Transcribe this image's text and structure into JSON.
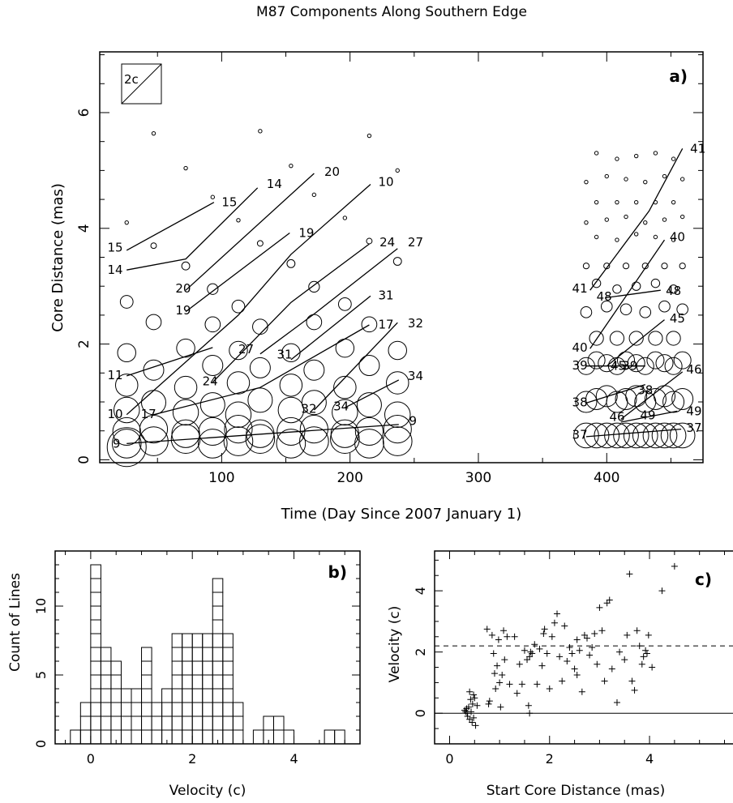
{
  "figure_title": "M87 Components Along Southern Edge",
  "chart_data": [
    {
      "panel": "a)",
      "type": "scatter",
      "xlabel": "Time (Day Since 2007 January 1)",
      "ylabel": "Core Distance (mas)",
      "xlim": [
        5,
        475
      ],
      "ylim": [
        -0.05,
        7.05
      ],
      "xticks": [
        100,
        200,
        300,
        400
      ],
      "yticks": [
        0,
        2,
        4,
        6
      ],
      "inset_label": "2c",
      "component_tracks": [
        {
          "id": "15",
          "points": [
            [
              26,
              3.62
            ],
            [
              94,
              4.45
            ]
          ]
        },
        {
          "id": "14",
          "points": [
            [
              26,
              3.28
            ],
            [
              72,
              3.47
            ],
            [
              128,
              4.7
            ]
          ]
        },
        {
          "id": "20",
          "points": [
            [
              72,
              2.93
            ],
            [
              172,
              4.95
            ]
          ]
        },
        {
          "id": "19",
          "points": [
            [
              72,
              2.56
            ],
            [
              153,
              3.92
            ]
          ]
        },
        {
          "id": "11",
          "points": [
            [
              26,
              1.45
            ],
            [
              93,
              1.94
            ]
          ]
        },
        {
          "id": "10",
          "points": [
            [
              26,
              0.78
            ],
            [
              113,
              2.5
            ],
            [
              154,
              3.55
            ],
            [
              216,
              4.76
            ]
          ]
        },
        {
          "id": "24",
          "points": [
            [
              93,
              1.34
            ],
            [
              154,
              2.72
            ],
            [
              215,
              3.73
            ]
          ]
        },
        {
          "id": "27",
          "points": [
            [
              130,
              1.83
            ],
            [
              172,
              2.52
            ],
            [
              237,
              3.65
            ]
          ]
        },
        {
          "id": "31",
          "points": [
            [
              154,
              1.73
            ],
            [
              216,
              2.83
            ]
          ]
        },
        {
          "id": "17",
          "points": [
            [
              47,
              0.78
            ],
            [
              130,
              1.25
            ],
            [
              215,
              2.33
            ]
          ]
        },
        {
          "id": "32",
          "points": [
            [
              172,
              0.86
            ],
            [
              237,
              2.37
            ]
          ]
        },
        {
          "id": "34",
          "points": [
            [
              196,
              0.9
            ],
            [
              238,
              1.38
            ]
          ]
        },
        {
          "id": "9",
          "points": [
            [
              26,
              0.28
            ],
            [
              238,
              0.61
            ]
          ]
        },
        {
          "id": "41",
          "points": [
            [
              387,
              2.93
            ],
            [
              433,
              4.3
            ],
            [
              459,
              5.38
            ]
          ]
        },
        {
          "id": "40",
          "points": [
            [
              387,
              1.92
            ],
            [
              445,
              3.8
            ]
          ]
        },
        {
          "id": "48",
          "points": [
            [
              399,
              2.8
            ],
            [
              442,
              2.93
            ]
          ]
        },
        {
          "id": "45",
          "points": [
            [
              400,
              1.62
            ],
            [
              445,
              2.42
            ]
          ]
        },
        {
          "id": "39",
          "points": [
            [
              384,
              1.62
            ],
            [
              430,
              1.62
            ]
          ]
        },
        {
          "id": "38",
          "points": [
            [
              384,
              0.98
            ],
            [
              430,
              1.3
            ]
          ]
        },
        {
          "id": "46",
          "points": [
            [
              411,
              0.7
            ],
            [
              459,
              1.52
            ]
          ]
        },
        {
          "id": "49",
          "points": [
            [
              411,
              0.65
            ],
            [
              455,
              0.84
            ]
          ]
        },
        {
          "id": "37",
          "points": [
            [
              384,
              0.4
            ],
            [
              458,
              0.53
            ]
          ]
        }
      ],
      "track_labels": [
        {
          "text": "15",
          "x": 11,
          "y": 3.67
        },
        {
          "text": "14",
          "x": 11,
          "y": 3.28
        },
        {
          "text": "20",
          "x": 64,
          "y": 2.96
        },
        {
          "text": "19",
          "x": 64,
          "y": 2.58
        },
        {
          "text": "11",
          "x": 11,
          "y": 1.46
        },
        {
          "text": "10",
          "x": 11,
          "y": 0.79
        },
        {
          "text": "17",
          "x": 37,
          "y": 0.79
        },
        {
          "text": "9",
          "x": 15,
          "y": 0.28
        },
        {
          "text": "24",
          "x": 85,
          "y": 1.36
        },
        {
          "text": "27",
          "x": 113,
          "y": 1.91
        },
        {
          "text": "31",
          "x": 143,
          "y": 1.82
        },
        {
          "text": "32",
          "x": 162,
          "y": 0.88
        },
        {
          "text": "34",
          "x": 187,
          "y": 0.92
        },
        {
          "text": "15",
          "x": 100,
          "y": 4.45
        },
        {
          "text": "14",
          "x": 135,
          "y": 4.77
        },
        {
          "text": "19",
          "x": 160,
          "y": 3.92
        },
        {
          "text": "20",
          "x": 180,
          "y": 4.98
        },
        {
          "text": "10",
          "x": 222,
          "y": 4.8
        },
        {
          "text": "24",
          "x": 223,
          "y": 3.76
        },
        {
          "text": "27",
          "x": 245,
          "y": 3.76
        },
        {
          "text": "31",
          "x": 222,
          "y": 2.84
        },
        {
          "text": "17",
          "x": 222,
          "y": 2.34
        },
        {
          "text": "32",
          "x": 245,
          "y": 2.36
        },
        {
          "text": "34",
          "x": 245,
          "y": 1.45
        },
        {
          "text": "9",
          "x": 246,
          "y": 0.67
        },
        {
          "text": "41",
          "x": 373,
          "y": 2.96
        },
        {
          "text": "40",
          "x": 373,
          "y": 1.94
        },
        {
          "text": "39",
          "x": 373,
          "y": 1.63
        },
        {
          "text": "38",
          "x": 373,
          "y": 0.99
        },
        {
          "text": "37",
          "x": 373,
          "y": 0.43
        },
        {
          "text": "48",
          "x": 392,
          "y": 2.82
        },
        {
          "text": "45",
          "x": 403,
          "y": 1.62
        },
        {
          "text": "39",
          "x": 412,
          "y": 1.62
        },
        {
          "text": "46",
          "x": 402,
          "y": 0.74
        },
        {
          "text": "49",
          "x": 426,
          "y": 0.77
        },
        {
          "text": "38",
          "x": 424,
          "y": 1.2
        },
        {
          "text": "41",
          "x": 465,
          "y": 5.38
        },
        {
          "text": "40",
          "x": 449,
          "y": 3.85
        },
        {
          "text": "48",
          "x": 446,
          "y": 2.92
        },
        {
          "text": "45",
          "x": 449,
          "y": 2.44
        },
        {
          "text": "46",
          "x": 462,
          "y": 1.56
        },
        {
          "text": "49",
          "x": 462,
          "y": 0.84
        },
        {
          "text": "37",
          "x": 462,
          "y": 0.55
        }
      ]
    },
    {
      "panel": "b)",
      "type": "bar",
      "xlabel": "Velocity (c)",
      "ylabel": "Count of Lines",
      "xlim": [
        -0.7,
        5.3
      ],
      "ylim": [
        0,
        14
      ],
      "xticks": [
        0,
        2,
        4
      ],
      "yticks": [
        0,
        5,
        10
      ],
      "bin_width": 0.2,
      "bin_starts": [
        -0.4,
        -0.2,
        0.0,
        0.2,
        0.4,
        0.6,
        0.8,
        1.0,
        1.2,
        1.4,
        1.6,
        1.8,
        2.0,
        2.2,
        2.4,
        2.6,
        2.8,
        3.0,
        3.2,
        3.4,
        3.6,
        3.8,
        4.0,
        4.2,
        4.4,
        4.6,
        4.8
      ],
      "counts": [
        1,
        3,
        13,
        7,
        6,
        4,
        4,
        7,
        3,
        4,
        8,
        8,
        8,
        8,
        12,
        8,
        3,
        0,
        1,
        2,
        2,
        1,
        0,
        0,
        0,
        1,
        1
      ]
    },
    {
      "panel": "c)",
      "type": "scatter",
      "xlabel": "Start Core Distance (mas)",
      "ylabel": "Velocity (c)",
      "xlim": [
        -0.3,
        5.8
      ],
      "ylim": [
        -1.0,
        5.3
      ],
      "xticks": [
        0,
        2,
        4
      ],
      "yticks": [
        0,
        2,
        4
      ],
      "reference_lines": [
        {
          "y": 0,
          "style": "solid"
        },
        {
          "y": 2.2,
          "style": "dashed"
        }
      ],
      "points": [
        [
          0.3,
          0.1
        ],
        [
          0.32,
          0.05
        ],
        [
          0.34,
          0.15
        ],
        [
          0.35,
          0.0
        ],
        [
          0.36,
          -0.1
        ],
        [
          0.38,
          0.2
        ],
        [
          0.4,
          0.7
        ],
        [
          0.4,
          -0.2
        ],
        [
          0.42,
          0.45
        ],
        [
          0.43,
          0.05
        ],
        [
          0.45,
          -0.3
        ],
        [
          0.46,
          0.3
        ],
        [
          0.48,
          0.6
        ],
        [
          0.48,
          -0.15
        ],
        [
          0.5,
          0.5
        ],
        [
          0.52,
          -0.4
        ],
        [
          0.55,
          0.25
        ],
        [
          0.75,
          2.75
        ],
        [
          0.78,
          0.3
        ],
        [
          0.8,
          0.4
        ],
        [
          0.85,
          2.55
        ],
        [
          0.88,
          1.95
        ],
        [
          0.9,
          1.3
        ],
        [
          0.92,
          0.8
        ],
        [
          0.95,
          1.55
        ],
        [
          0.98,
          2.4
        ],
        [
          1.0,
          1.0
        ],
        [
          1.02,
          0.2
        ],
        [
          1.05,
          1.25
        ],
        [
          1.08,
          2.7
        ],
        [
          1.1,
          1.75
        ],
        [
          1.15,
          2.5
        ],
        [
          1.2,
          0.95
        ],
        [
          1.3,
          2.5
        ],
        [
          1.35,
          0.65
        ],
        [
          1.4,
          1.6
        ],
        [
          1.45,
          0.95
        ],
        [
          1.5,
          2.05
        ],
        [
          1.55,
          1.75
        ],
        [
          1.58,
          0.25
        ],
        [
          1.6,
          1.85
        ],
        [
          1.6,
          0.0
        ],
        [
          1.62,
          2.0
        ],
        [
          1.65,
          1.95
        ],
        [
          1.7,
          2.25
        ],
        [
          1.75,
          0.95
        ],
        [
          1.8,
          2.1
        ],
        [
          1.85,
          1.55
        ],
        [
          1.88,
          2.6
        ],
        [
          1.9,
          2.75
        ],
        [
          1.95,
          1.95
        ],
        [
          2.0,
          0.8
        ],
        [
          2.05,
          2.5
        ],
        [
          2.1,
          2.95
        ],
        [
          2.15,
          3.25
        ],
        [
          2.2,
          1.85
        ],
        [
          2.25,
          1.05
        ],
        [
          2.3,
          2.85
        ],
        [
          2.35,
          1.7
        ],
        [
          2.4,
          2.15
        ],
        [
          2.45,
          1.95
        ],
        [
          2.5,
          1.45
        ],
        [
          2.55,
          1.25
        ],
        [
          2.55,
          2.4
        ],
        [
          2.6,
          2.05
        ],
        [
          2.65,
          0.7
        ],
        [
          2.7,
          2.55
        ],
        [
          2.75,
          2.45
        ],
        [
          2.8,
          1.9
        ],
        [
          2.85,
          2.15
        ],
        [
          2.9,
          2.6
        ],
        [
          2.95,
          1.6
        ],
        [
          3.0,
          3.45
        ],
        [
          3.05,
          2.7
        ],
        [
          3.1,
          1.05
        ],
        [
          3.15,
          3.6
        ],
        [
          3.2,
          3.7
        ],
        [
          3.25,
          1.45
        ],
        [
          3.35,
          0.35
        ],
        [
          3.4,
          2.0
        ],
        [
          3.5,
          1.75
        ],
        [
          3.55,
          2.55
        ],
        [
          3.6,
          4.55
        ],
        [
          3.65,
          1.05
        ],
        [
          3.7,
          0.75
        ],
        [
          3.75,
          2.7
        ],
        [
          3.8,
          2.2
        ],
        [
          3.85,
          1.6
        ],
        [
          3.88,
          1.85
        ],
        [
          3.92,
          2.05
        ],
        [
          3.95,
          1.95
        ],
        [
          3.98,
          2.55
        ],
        [
          4.05,
          1.5
        ],
        [
          4.25,
          4.0
        ],
        [
          4.5,
          4.8
        ]
      ]
    }
  ]
}
